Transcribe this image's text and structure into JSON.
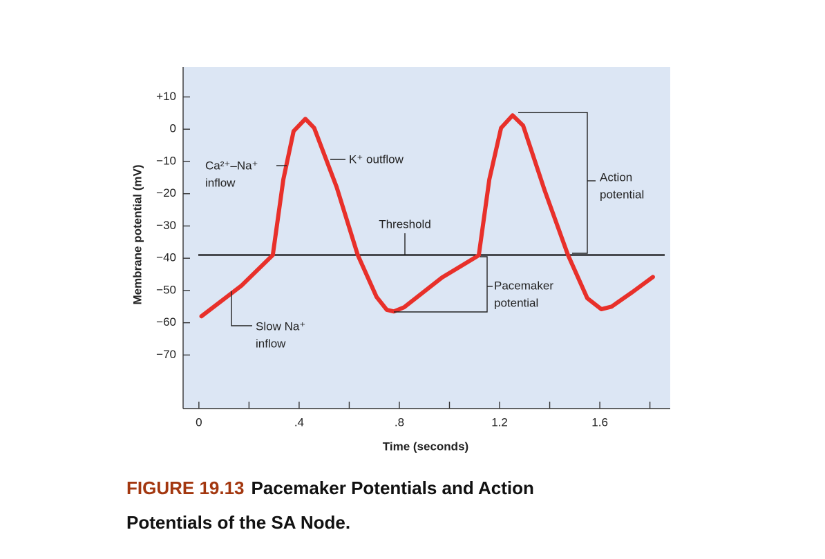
{
  "chart_data": {
    "type": "line",
    "figure_label": "FIGURE 19.13",
    "title": "Pacemaker Potentials and Action Potentials of the SA Node.",
    "x_label": "Time (seconds)",
    "y_label": "Membrane potential (mV)",
    "xlim": [
      -0.063,
      1.881
    ],
    "ylim": [
      -86.6,
      19.3
    ],
    "xticks": [
      0,
      {
        "value": 0.4,
        "label": ".4"
      },
      {
        "value": 0.8,
        "label": ".8"
      },
      1.2,
      1.6
    ],
    "xminor_ticks": [
      0.2,
      0.6,
      1.0,
      1.4,
      1.8
    ],
    "yticks": [
      {
        "value": 10,
        "label": "+10"
      },
      0,
      {
        "value": -10,
        "label": "−10"
      },
      {
        "value": -20,
        "label": "−20"
      },
      {
        "value": -30,
        "label": "−30"
      },
      {
        "value": -40,
        "label": "−40"
      },
      {
        "value": -50,
        "label": "−50"
      },
      {
        "value": -60,
        "label": "−60"
      },
      {
        "value": -70,
        "label": "−70"
      }
    ],
    "threshold": -39,
    "background": "#dce6f4",
    "series": [
      {
        "color": "#e8302a",
        "x": [
          0.01,
          0.17,
          0.295,
          0.337,
          0.378,
          0.425,
          0.46,
          0.55,
          0.634,
          0.709,
          0.75,
          0.778,
          0.819,
          0.97,
          1.117,
          1.159,
          1.206,
          1.252,
          1.294,
          1.38,
          1.473,
          1.55,
          1.606,
          1.647,
          1.73,
          1.812
        ],
        "values": [
          -58,
          -48.5,
          -39,
          -15.6,
          -0.6,
          3.2,
          0.4,
          -18,
          -39,
          -52,
          -56,
          -56.5,
          -55.2,
          -46,
          -39.1,
          -15.6,
          0.4,
          4.3,
          1.1,
          -19,
          -39,
          -52.4,
          -55.8,
          -55,
          -50.5,
          -45.8
        ]
      }
    ],
    "annotations": [
      {
        "lines": [
          "Ca²⁺–Na⁺",
          "inflow"
        ]
      },
      {
        "lines": [
          "K⁺ outflow"
        ]
      },
      {
        "lines": [
          "Threshold"
        ]
      },
      {
        "lines": [
          "Action",
          "potential"
        ]
      },
      {
        "lines": [
          "Pacemaker",
          "potential"
        ]
      },
      {
        "lines": [
          "Slow Na⁺",
          "inflow"
        ]
      }
    ]
  }
}
